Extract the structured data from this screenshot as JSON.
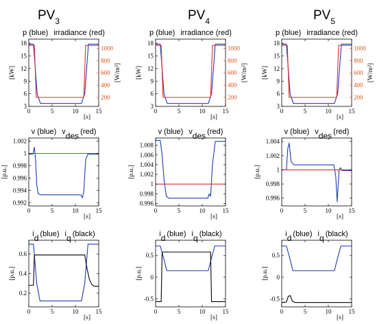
{
  "columns": [
    {
      "label": "PV",
      "index": "3"
    },
    {
      "label": "PV",
      "index": "4"
    },
    {
      "label": "PV",
      "index": "5"
    }
  ],
  "colors": {
    "blue": "#1f3bb3",
    "red": "#e32b2b",
    "black": "#000000",
    "orange_axis": "#d95319"
  },
  "chart_data": [
    {
      "type": "line",
      "column": 0,
      "row": 0,
      "title_parts": {
        "a": "p (blue)",
        "b": "irradiance (red)"
      },
      "xlabel": "[s]",
      "ylabel": "[kW]",
      "ylabel2": "[W/m²]",
      "xlim": [
        0,
        15
      ],
      "ylim": [
        3,
        19
      ],
      "ylim2": [
        52.6,
        1153
      ],
      "xticks": [
        0,
        5,
        10,
        15
      ],
      "yticks": [
        3,
        6,
        9,
        12,
        15,
        18
      ],
      "yticks2": [
        200,
        400,
        600,
        800,
        1000
      ],
      "series": [
        {
          "color": "blue",
          "axis": "left",
          "x": [
            0,
            1,
            1.8,
            2.5,
            11.3,
            12.0,
            12.8,
            15
          ],
          "y": [
            17.8,
            17.8,
            6,
            3.7,
            3.7,
            6,
            17.8,
            17.8
          ]
        },
        {
          "color": "red",
          "axis": "right",
          "x": [
            0,
            1.2,
            1.6,
            11.8,
            12.2,
            15
          ],
          "y": [
            1050,
            1050,
            200,
            200,
            1050,
            1050
          ]
        }
      ]
    },
    {
      "type": "line",
      "column": 1,
      "row": 0,
      "title_parts": {
        "a": "p (blue)",
        "b": "irradiance (red)"
      },
      "xlabel": "[s]",
      "ylabel": "[kW]",
      "ylabel2": "[W/m²]",
      "xlim": [
        0,
        15
      ],
      "ylim": [
        3,
        19
      ],
      "ylim2": [
        52.6,
        1153
      ],
      "xticks": [
        0,
        5,
        10,
        15
      ],
      "yticks": [
        3,
        6,
        9,
        12,
        15,
        18
      ],
      "yticks2": [
        200,
        400,
        600,
        800,
        1000
      ],
      "series": [
        {
          "color": "blue",
          "axis": "left",
          "x": [
            0,
            1,
            1.8,
            2.5,
            11.3,
            12.0,
            12.8,
            15
          ],
          "y": [
            17.8,
            17.8,
            6,
            3.7,
            3.7,
            6,
            17.8,
            17.8
          ]
        },
        {
          "color": "red",
          "axis": "right",
          "x": [
            0,
            1.2,
            1.6,
            11.8,
            12.2,
            15
          ],
          "y": [
            1050,
            1050,
            200,
            200,
            1050,
            1050
          ]
        }
      ]
    },
    {
      "type": "line",
      "column": 2,
      "row": 0,
      "title_parts": {
        "a": "p (blue)",
        "b": "irradiance (red)"
      },
      "xlabel": "[s]",
      "ylabel": "[kW]",
      "ylabel2": "[W/m²]",
      "xlim": [
        0,
        15
      ],
      "ylim": [
        3,
        19
      ],
      "ylim2": [
        52.6,
        1153
      ],
      "xticks": [
        0,
        5,
        10,
        15
      ],
      "yticks": [
        3,
        6,
        9,
        12,
        15,
        18
      ],
      "yticks2": [
        200,
        400,
        600,
        800,
        1000
      ],
      "series": [
        {
          "color": "blue",
          "axis": "left",
          "x": [
            0,
            1,
            1.8,
            2.5,
            11.3,
            12.0,
            12.8,
            15
          ],
          "y": [
            17.8,
            17.8,
            6,
            3.7,
            3.7,
            6,
            17.8,
            17.8
          ]
        },
        {
          "color": "red",
          "axis": "right",
          "x": [
            0,
            1.2,
            1.6,
            11.8,
            12.2,
            15
          ],
          "y": [
            1050,
            1050,
            200,
            200,
            1050,
            1050
          ]
        }
      ]
    },
    {
      "type": "line",
      "column": 0,
      "row": 1,
      "title_parts": {
        "a": "v (blue)",
        "b": "v",
        "b_sub": "des",
        "c": "(red)"
      },
      "xlabel": "[s]",
      "ylabel": "[p.u.]",
      "xlim": [
        0,
        15
      ],
      "ylim": [
        0.9915,
        1.0025
      ],
      "xticks": [
        0,
        5,
        10,
        15
      ],
      "yticks": [
        0.992,
        0.994,
        0.996,
        0.998,
        1,
        1.002
      ],
      "series": [
        {
          "color": "blue",
          "axis": "left",
          "x": [
            0,
            0.9,
            1.2,
            1.45,
            1.7,
            2.0,
            2.5,
            11.2,
            11.5,
            11.8,
            12.2,
            12.7,
            15
          ],
          "y": [
            0.9999,
            0.9999,
            1.001,
            0.999,
            0.995,
            0.9935,
            0.9933,
            0.9933,
            0.9928,
            0.9938,
            0.999,
            0.9999,
            0.9999
          ]
        },
        {
          "color": "red",
          "axis": "left",
          "x": [
            0,
            15
          ],
          "y": [
            1,
            1
          ]
        }
      ]
    },
    {
      "type": "line",
      "column": 1,
      "row": 1,
      "title_parts": {
        "a": "v (blue)",
        "b": "v",
        "b_sub": "des",
        "c": "(red)"
      },
      "xlabel": "[s]",
      "ylabel": "[p.u.]",
      "xlim": [
        0,
        15
      ],
      "ylim": [
        0.9955,
        1.0095
      ],
      "xticks": [
        0,
        5,
        10,
        15
      ],
      "yticks": [
        0.996,
        0.998,
        1,
        1.002,
        1.004,
        1.006,
        1.008
      ],
      "series": [
        {
          "color": "blue",
          "axis": "left",
          "x": [
            0,
            1.0,
            1.4,
            1.8,
            2.3,
            2.8,
            11.2,
            11.5,
            11.8,
            12.2,
            12.8,
            15
          ],
          "y": [
            1.009,
            1.009,
            1.006,
            1.001,
            0.9975,
            0.9971,
            0.9971,
            0.998,
            0.9975,
            1.004,
            1.0088,
            1.0088
          ]
        },
        {
          "color": "red",
          "axis": "left",
          "x": [
            0,
            15
          ],
          "y": [
            1,
            1
          ]
        }
      ]
    },
    {
      "type": "line",
      "column": 2,
      "row": 1,
      "title_parts": {
        "a": "v (blue)",
        "b": "v",
        "b_sub": "des",
        "c": "(red)"
      },
      "xlabel": "[s]",
      "ylabel": "[p.u.]",
      "xlim": [
        0,
        15
      ],
      "ylim": [
        0.9949,
        1.0045
      ],
      "xticks": [
        0,
        5,
        10,
        15
      ],
      "yticks": [
        0.996,
        0.998,
        1,
        1.002,
        1.004
      ],
      "series": [
        {
          "color": "blue",
          "axis": "left",
          "x": [
            0,
            1.0,
            1.3,
            1.6,
            2.0,
            2.6,
            11.2,
            11.6,
            11.9,
            12.3,
            12.6,
            13.0,
            15
          ],
          "y": [
            1.0,
            1.0,
            1.003,
            1.0038,
            1.0012,
            1.0007,
            1.0007,
            0.999,
            0.9955,
            1.0,
            1.0003,
            0.9999,
            0.9999
          ]
        },
        {
          "color": "red",
          "axis": "left",
          "x": [
            0,
            15
          ],
          "y": [
            1,
            1
          ]
        }
      ]
    },
    {
      "type": "line",
      "column": 0,
      "row": 2,
      "title_parts": {
        "a": "i",
        "a_sub": "d",
        "a2": "(blue)",
        "b": "i",
        "b_sub": "q",
        "c": "(black)"
      },
      "xlabel": "[s]",
      "ylabel": "[p.u.]",
      "xlim": [
        0,
        15
      ],
      "ylim": [
        0.06,
        0.74
      ],
      "xticks": [
        0,
        5,
        10,
        15
      ],
      "yticks": [
        0.2,
        0.4,
        0.6
      ],
      "series": [
        {
          "color": "blue",
          "axis": "left",
          "x": [
            0,
            1.0,
            1.7,
            2.4,
            11.3,
            12.0,
            12.7,
            15
          ],
          "y": [
            0.7,
            0.7,
            0.3,
            0.12,
            0.12,
            0.3,
            0.7,
            0.7
          ]
        },
        {
          "color": "black",
          "axis": "left",
          "x": [
            0,
            1.0,
            1.2,
            11.8,
            12.0,
            12.5,
            13.0,
            13.5,
            14.0,
            15
          ],
          "y": [
            0.28,
            0.28,
            0.59,
            0.59,
            0.59,
            0.45,
            0.34,
            0.29,
            0.27,
            0.27
          ]
        }
      ]
    },
    {
      "type": "line",
      "column": 1,
      "row": 2,
      "title_parts": {
        "a": "i",
        "a_sub": "d",
        "a2": "(blue)",
        "b": "i",
        "b_sub": "q",
        "c": "(black)"
      },
      "xlabel": "[s]",
      "ylabel": "[p.u.]",
      "xlim": [
        0,
        15
      ],
      "ylim": [
        -0.68,
        0.85
      ],
      "xticks": [
        0,
        5,
        10,
        15
      ],
      "yticks": [
        -0.5,
        0,
        0.5
      ],
      "series": [
        {
          "color": "blue",
          "axis": "left",
          "x": [
            0,
            1.0,
            1.7,
            2.4,
            11.3,
            12.0,
            12.7,
            15
          ],
          "y": [
            0.72,
            0.72,
            0.45,
            0.15,
            0.15,
            0.45,
            0.72,
            0.72
          ]
        },
        {
          "color": "black",
          "axis": "left",
          "x": [
            0,
            1.2,
            1.4,
            11.8,
            12.0,
            15
          ],
          "y": [
            -0.56,
            -0.56,
            0.58,
            0.58,
            -0.56,
            -0.56
          ]
        }
      ]
    },
    {
      "type": "line",
      "column": 2,
      "row": 2,
      "title_parts": {
        "a": "i",
        "a_sub": "d",
        "a2": "(blue)",
        "b": "i",
        "b_sub": "q",
        "c": "(black)"
      },
      "xlabel": "[s]",
      "ylabel": "[p.u.]",
      "xlim": [
        0,
        15
      ],
      "ylim": [
        -0.68,
        0.85
      ],
      "xticks": [
        0,
        5,
        10,
        15
      ],
      "yticks": [
        -0.5,
        0,
        0.5
      ],
      "series": [
        {
          "color": "blue",
          "axis": "left",
          "x": [
            0,
            1.0,
            1.7,
            2.4,
            11.3,
            12.0,
            12.7,
            15
          ],
          "y": [
            0.72,
            0.72,
            0.45,
            0.15,
            0.15,
            0.45,
            0.72,
            0.72
          ]
        },
        {
          "color": "black",
          "axis": "left",
          "x": [
            0,
            1.0,
            1.4,
            1.8,
            2.3,
            2.8,
            15
          ],
          "y": [
            -0.58,
            -0.57,
            -0.44,
            -0.42,
            -0.55,
            -0.58,
            -0.58
          ]
        }
      ]
    }
  ]
}
